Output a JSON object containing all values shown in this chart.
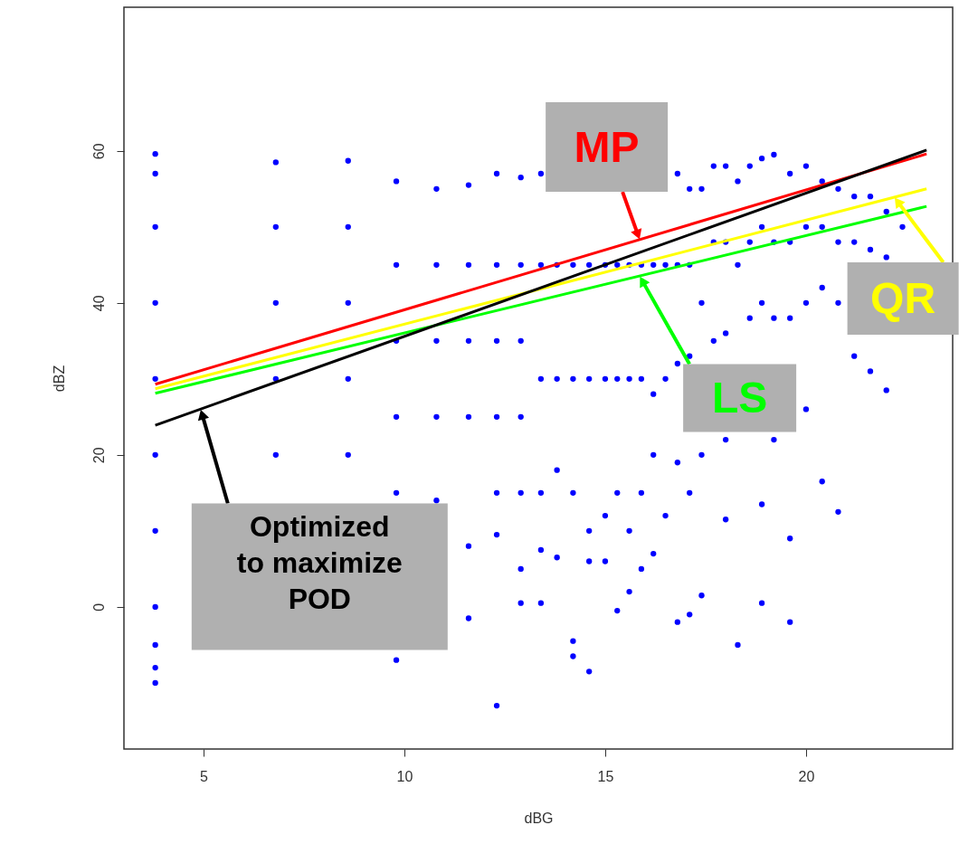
{
  "chart_data": {
    "type": "scatter",
    "xlabel": "dBG",
    "ylabel": "dBZ",
    "xlim": [
      3.02,
      23.65
    ],
    "ylim": [
      -18.7,
      78.9
    ],
    "xticks": [
      5,
      10,
      15,
      20
    ],
    "yticks": [
      0,
      20,
      40,
      60
    ],
    "grid": false,
    "marker": "circle",
    "series": [
      {
        "type": "scatter",
        "color": "#0000ff",
        "x": [
          3.8,
          3.8,
          3.8,
          3.8,
          3.8,
          3.8,
          3.8,
          3.8,
          3.8,
          3.8,
          3.8,
          6.8,
          6.8,
          6.8,
          6.8,
          6.8,
          8.6,
          8.6,
          8.6,
          8.6,
          8.6,
          9.8,
          9.8,
          9.8,
          9.8,
          9.8,
          9.8,
          10.8,
          10.8,
          10.8,
          10.8,
          10.8,
          11.6,
          11.6,
          11.6,
          11.6,
          11.6,
          11.6,
          12.3,
          12.3,
          12.3,
          12.3,
          12.3,
          12.3,
          12.3,
          12.9,
          12.9,
          12.9,
          12.9,
          12.9,
          12.9,
          12.9,
          13.4,
          13.4,
          13.4,
          13.4,
          13.4,
          13.4,
          13.8,
          13.8,
          13.8,
          13.8,
          14.2,
          14.2,
          14.2,
          14.2,
          14.2,
          14.6,
          14.6,
          14.6,
          14.6,
          14.6,
          15.0,
          15.0,
          15.0,
          15.0,
          15.3,
          15.3,
          15.3,
          15.3,
          15.6,
          15.6,
          15.6,
          15.6,
          15.9,
          15.9,
          15.9,
          15.9,
          16.2,
          16.2,
          16.2,
          16.2,
          16.5,
          16.5,
          16.5,
          16.8,
          16.8,
          16.8,
          16.8,
          16.8,
          17.1,
          17.1,
          17.1,
          17.1,
          17.1,
          17.4,
          17.4,
          17.4,
          17.4,
          17.7,
          17.7,
          17.7,
          18.0,
          18.0,
          18.0,
          18.0,
          18.0,
          18.3,
          18.3,
          18.3,
          18.6,
          18.6,
          18.6,
          18.9,
          18.9,
          18.9,
          18.9,
          18.9,
          19.2,
          19.2,
          19.2,
          19.2,
          19.6,
          19.6,
          19.6,
          19.6,
          19.6,
          20.0,
          20.0,
          20.0,
          20.0,
          20.4,
          20.4,
          20.4,
          20.4,
          20.8,
          20.8,
          20.8,
          20.8,
          21.2,
          21.2,
          21.2,
          21.6,
          21.6,
          21.6,
          22.0,
          22.0,
          22.0,
          22.4
        ],
        "values": [
          59.6,
          57,
          50,
          40,
          30,
          20,
          10,
          0,
          -5,
          -8,
          -10,
          58.5,
          50,
          40,
          30,
          20,
          58.7,
          50,
          40,
          30,
          20,
          56,
          45,
          35,
          25,
          15,
          -7,
          55,
          45,
          35,
          25,
          14,
          55.5,
          45,
          35,
          25,
          8,
          -1.5,
          57,
          45,
          35,
          25,
          15,
          9.5,
          -13,
          56.5,
          45,
          35,
          25,
          15,
          5,
          0.5,
          57,
          45,
          30,
          15,
          7.5,
          0.5,
          45,
          30,
          18,
          6.5,
          45,
          30,
          15,
          -4.5,
          -6.5,
          45,
          30,
          10,
          -8.5,
          6,
          45,
          30,
          12,
          6,
          45,
          30,
          15,
          -0.5,
          45,
          30,
          10,
          2,
          45,
          30,
          15,
          5,
          45,
          28,
          20,
          7,
          45,
          30,
          12,
          57,
          45,
          32,
          19,
          -2,
          55,
          45,
          33,
          15,
          -1,
          55,
          40,
          20,
          1.5,
          58,
          48,
          35,
          58,
          48,
          36,
          22,
          11.5,
          56,
          45,
          -5,
          58,
          48,
          38,
          59,
          50,
          40,
          13.5,
          0.5,
          59.5,
          48,
          38,
          22,
          57,
          48,
          38,
          9,
          -2,
          58,
          50,
          40,
          26,
          56,
          50,
          42,
          16.5,
          55,
          48,
          40,
          12.5,
          54,
          48,
          33,
          54,
          47,
          31,
          52,
          46,
          28.5,
          50
        ]
      },
      {
        "type": "line",
        "color": "#ff0000",
        "marker": "none",
        "x": [
          3.8,
          23
        ],
        "values": [
          29.3,
          59.6
        ]
      },
      {
        "type": "line",
        "color": "#00ff00",
        "marker": "none",
        "x": [
          3.8,
          23
        ],
        "values": [
          28.1,
          52.7
        ]
      },
      {
        "type": "line",
        "color": "#ffff00",
        "marker": "none",
        "x": [
          3.8,
          23
        ],
        "values": [
          28.7,
          55
        ]
      },
      {
        "type": "line",
        "color": "#000000",
        "marker": "none",
        "x": [
          3.8,
          23
        ],
        "values": [
          23.9,
          60.1
        ]
      }
    ],
    "annotations": [
      {
        "text": "MP",
        "x": 15.86,
        "y": 48.3
      },
      {
        "text": "LS",
        "x": 15.86,
        "y": 43.5
      },
      {
        "text": "QR",
        "x": 22.2,
        "y": 53.9
      },
      {
        "text": "Optimized to maximize POD",
        "x": 4.93,
        "y": 26.0
      }
    ]
  }
}
